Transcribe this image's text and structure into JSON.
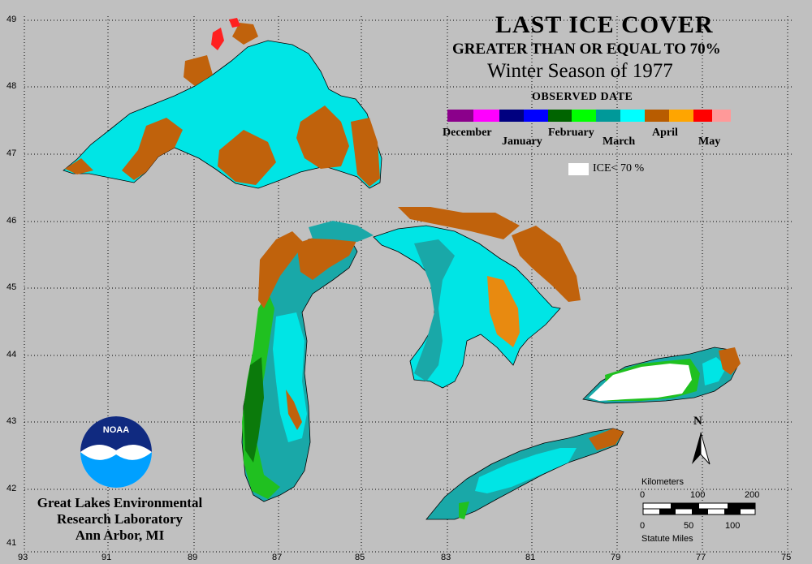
{
  "title": {
    "line1": "LAST ICE COVER",
    "line2": "GREATER THAN OR EQUAL TO 70%",
    "line3": "Winter Season of 1977"
  },
  "legend": {
    "heading": "OBSERVED DATE",
    "months": [
      "December",
      "January",
      "February",
      "March",
      "April",
      "May"
    ],
    "colors": {
      "december": [
        "#8b008b",
        "#ff00ff"
      ],
      "january": [
        "#000080",
        "#0000ff"
      ],
      "february": [
        "#006400",
        "#00ff00"
      ],
      "march": [
        "#009999",
        "#00ffff"
      ],
      "april": [
        "#b85c00",
        "#ffa500"
      ],
      "may": [
        "#ff0000",
        "#ff9999"
      ]
    },
    "ice_lt_label": "ICE< 70 %"
  },
  "axes": {
    "lat_labels": [
      "49",
      "48",
      "47",
      "46",
      "45",
      "44",
      "43",
      "42",
      "41"
    ],
    "lon_labels": [
      "93",
      "91",
      "89",
      "87",
      "85",
      "83",
      "81",
      "79",
      "77",
      "75"
    ]
  },
  "credit": {
    "line1": "Great Lakes Environmental",
    "line2": "Research Laboratory",
    "line3": "Ann Arbor, MI",
    "logo_text": "NOAA"
  },
  "north_arrow": {
    "label": "N"
  },
  "scale_bar": {
    "km_title": "Kilometers",
    "km_ticks": [
      "0",
      "100",
      "200"
    ],
    "mi_ticks": [
      "0",
      "50",
      "100"
    ],
    "mi_title": "Statute Miles"
  },
  "map_colors": {
    "background": "#c0c0c0",
    "cyan": "#00e5e5",
    "teal": "#19a8a8",
    "green": "#20c020",
    "dark_green": "#0b7a0b",
    "orange_brown": "#c0620c",
    "orange": "#e88a10",
    "white": "#ffffff"
  }
}
